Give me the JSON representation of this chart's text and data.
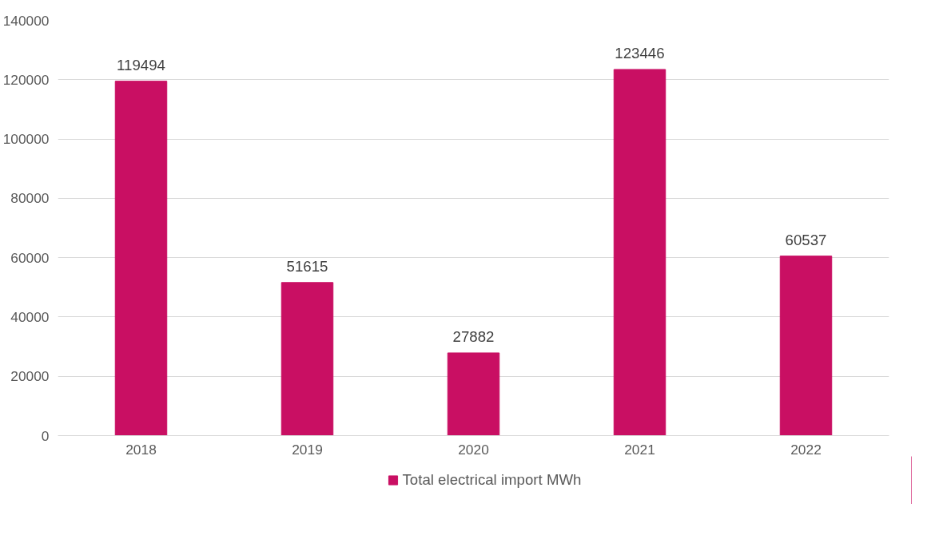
{
  "chart_data": {
    "type": "bar",
    "categories": [
      "2018",
      "2019",
      "2020",
      "2021",
      "2022"
    ],
    "series": [
      {
        "name": "Total electrical import MWh",
        "color": "#c90f63",
        "values": [
          119494,
          51615,
          27882,
          123446,
          60537
        ]
      }
    ],
    "ylim": [
      0,
      140000
    ],
    "yticks": [
      0,
      20000,
      40000,
      60000,
      80000,
      100000,
      120000,
      140000
    ],
    "grid": "y",
    "legend": "bottom",
    "data_labels": true
  }
}
